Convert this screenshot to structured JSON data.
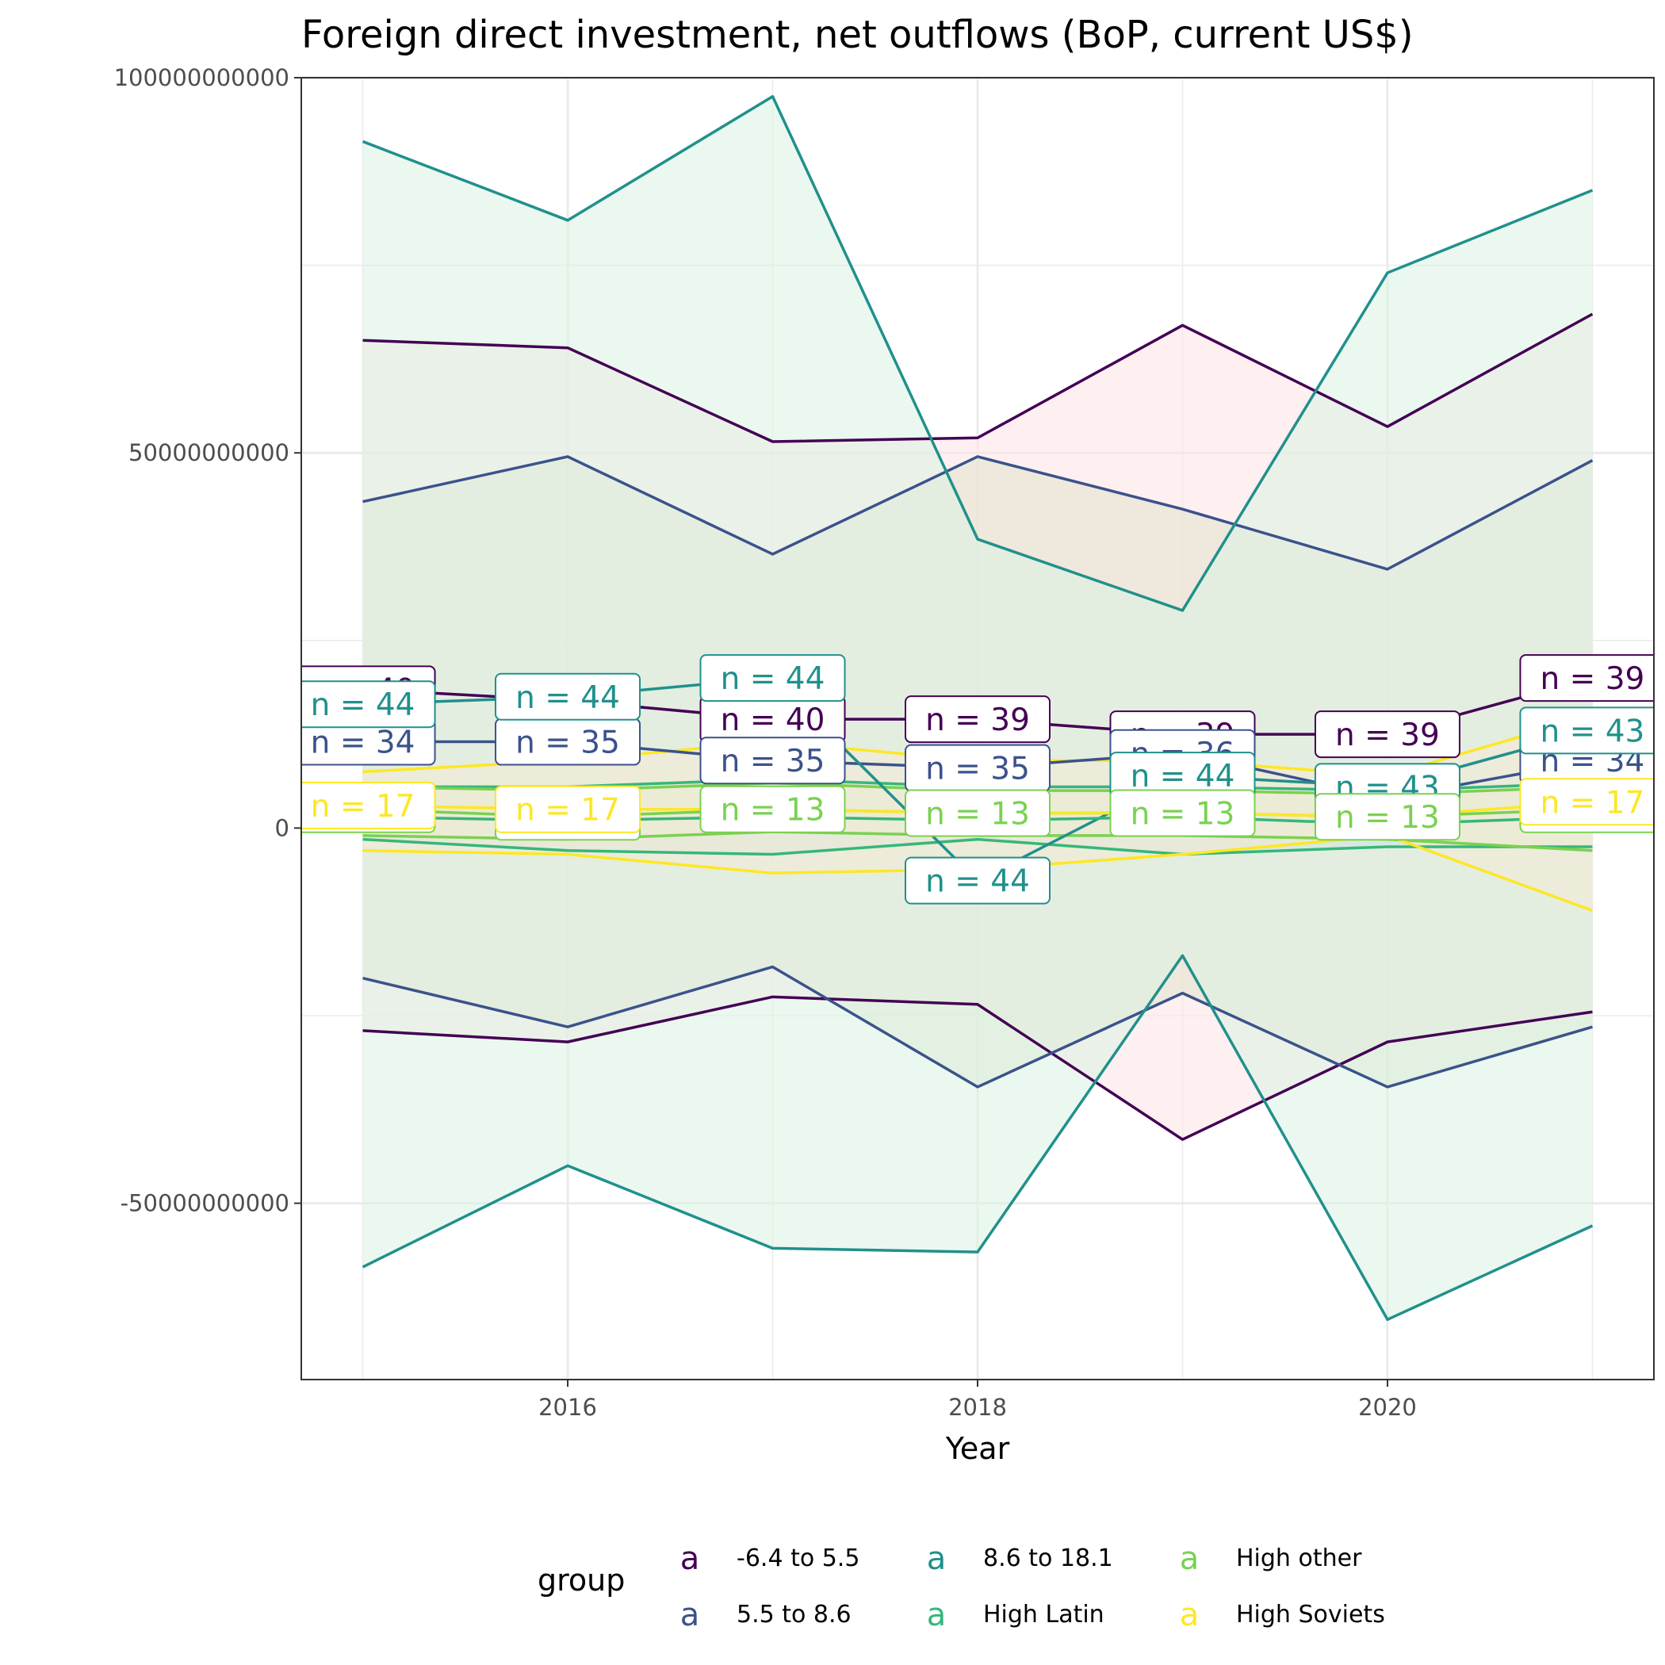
{
  "chart_data": {
    "type": "line",
    "title": "Foreign direct investment, net outflows (BoP, current US$)",
    "xlabel": "Year",
    "ylabel": "",
    "xlim": [
      2014.7,
      2021.3
    ],
    "ylim": [
      -73500000000,
      100000000000
    ],
    "x_ticks": [
      2016,
      2018,
      2020
    ],
    "y_ticks": [
      -50000000000,
      0,
      50000000000,
      100000000000
    ],
    "y_tick_labels": [
      "-50000000000",
      "0",
      "50000000000",
      "100000000000"
    ],
    "grid": true,
    "legend": {
      "title": "group",
      "position": "bottom",
      "key_glyph": "a"
    },
    "x": [
      2015,
      2016,
      2017,
      2018,
      2019,
      2020,
      2021
    ],
    "series": [
      {
        "name": "-6.4 to 5.5",
        "color": "#440154",
        "ribbon_color": "#fde4e6",
        "mean": [
          18500000000,
          17000000000,
          14500000000,
          14500000000,
          12500000000,
          12500000000,
          20000000000
        ],
        "upper": [
          65000000000,
          64000000000,
          51500000000,
          52000000000,
          67000000000,
          53500000000,
          68500000000
        ],
        "lower": [
          -27000000000,
          -28500000000,
          -22500000000,
          -23500000000,
          -41500000000,
          -28500000000,
          -24500000000
        ],
        "n": [
          40,
          null,
          40,
          39,
          39,
          39,
          39
        ]
      },
      {
        "name": "5.5 to 8.6",
        "color": "#3b528b",
        "ribbon_color": "#e2e2cc",
        "mean": [
          11500000000,
          11500000000,
          9000000000,
          8000000000,
          10000000000,
          4000000000,
          9000000000
        ],
        "upper": [
          43500000000,
          49500000000,
          36500000000,
          49500000000,
          42500000000,
          34500000000,
          49000000000
        ],
        "lower": [
          -20000000000,
          -26500000000,
          -18500000000,
          -34500000000,
          -22000000000,
          -34500000000,
          -26500000000
        ],
        "n": [
          34,
          35,
          35,
          35,
          36,
          null,
          34
        ]
      },
      {
        "name": "8.6 to 18.1",
        "color": "#21908c",
        "ribbon_color": "#d8f3e1",
        "mean": [
          16500000000,
          17500000000,
          20000000000,
          -7000000000,
          7000000000,
          5500000000,
          13000000000
        ],
        "upper": [
          91500000000,
          81000000000,
          97500000000,
          38500000000,
          29000000000,
          74000000000,
          85000000000
        ],
        "lower": [
          -58500000000,
          -45000000000,
          -56000000000,
          -56500000000,
          -17000000000,
          -65500000000,
          -53000000000
        ],
        "n": [
          44,
          44,
          44,
          44,
          44,
          43,
          43
        ]
      },
      {
        "name": "High Latin",
        "color": "#35b779",
        "ribbon_color": "#cfe6df",
        "mean": [
          1500000000,
          1000000000,
          1500000000,
          1000000000,
          1500000000,
          500000000,
          1500000000
        ],
        "upper": [
          5500000000,
          5500000000,
          6500000000,
          5500000000,
          5500000000,
          5000000000,
          6000000000
        ],
        "lower": [
          -1500000000,
          -3000000000,
          -3500000000,
          -1500000000,
          -3500000000,
          -2500000000,
          -2500000000
        ],
        "n": [
          null,
          null,
          null,
          null,
          null,
          null,
          null
        ]
      },
      {
        "name": "High other",
        "color": "#7ad151",
        "ribbon_color": "#e5f0d5",
        "mean": [
          2500000000,
          1500000000,
          2500000000,
          2000000000,
          2000000000,
          1500000000,
          2500000000
        ],
        "upper": [
          5500000000,
          5000000000,
          6000000000,
          5000000000,
          5000000000,
          4500000000,
          5500000000
        ],
        "lower": [
          -1000000000,
          -1500000000,
          -500000000,
          -1000000000,
          -1000000000,
          -1500000000,
          -3000000000
        ],
        "n": [
          13,
          13,
          13,
          13,
          13,
          13,
          13
        ]
      },
      {
        "name": "High Soviets",
        "color": "#fde725",
        "ribbon_color": "#f6e9d3",
        "mean": [
          3000000000,
          2500000000,
          2500000000,
          2000000000,
          2000000000,
          1500000000,
          3500000000
        ],
        "upper": [
          7500000000,
          9000000000,
          11500000000,
          9000000000,
          9000000000,
          7000000000,
          15000000000
        ],
        "lower": [
          -3000000000,
          -3500000000,
          -6000000000,
          -5500000000,
          -3500000000,
          -1000000000,
          -11000000000
        ],
        "n": [
          17,
          17,
          null,
          null,
          null,
          null,
          17
        ]
      }
    ]
  }
}
